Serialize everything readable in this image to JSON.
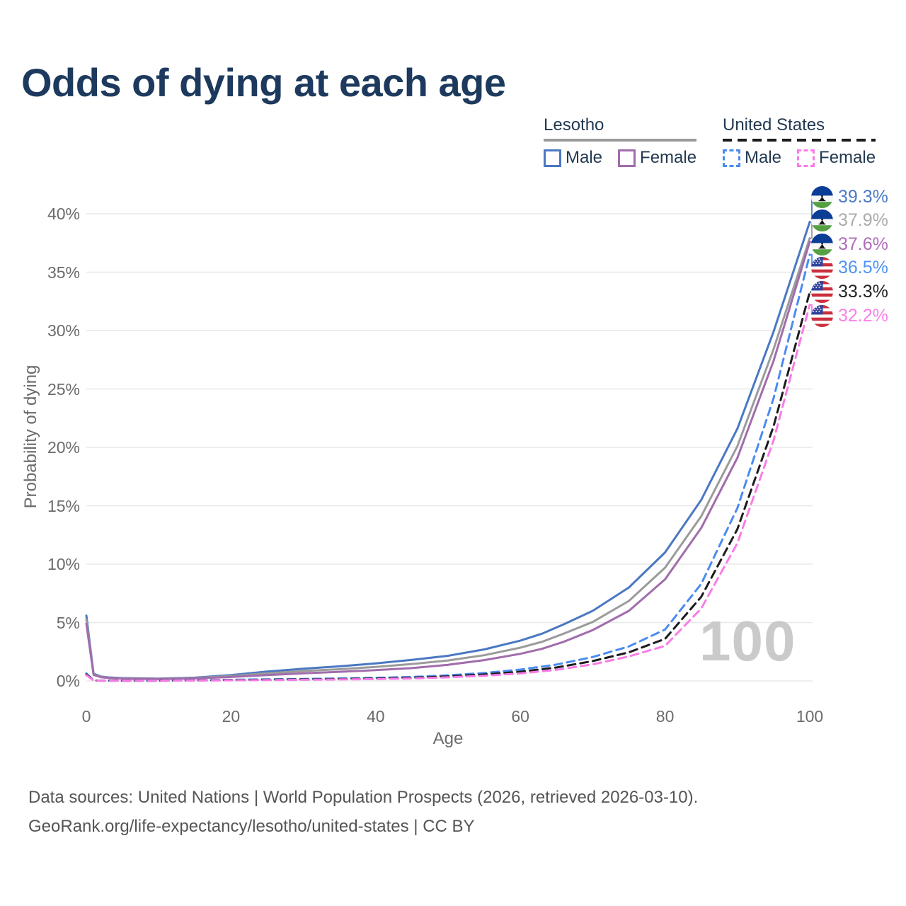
{
  "title": "Odds of dying at each age",
  "legend": {
    "groups": [
      {
        "label": "Lesotho",
        "items": [
          {
            "label": "Male"
          },
          {
            "label": "Female"
          }
        ]
      },
      {
        "label": "United States",
        "items": [
          {
            "label": "Male"
          },
          {
            "label": "Female"
          }
        ]
      }
    ]
  },
  "chart_data": {
    "type": "line",
    "title": "Odds of dying at each age",
    "xlabel": "Age",
    "ylabel": "Probability of dying",
    "xticks": [
      0,
      20,
      40,
      60,
      80,
      100
    ],
    "yticks": [
      0,
      5,
      10,
      15,
      20,
      25,
      30,
      35,
      40
    ],
    "xlim": [
      0,
      100
    ],
    "ylim": [
      0,
      41
    ],
    "grid": "horizontal",
    "watermark": "100",
    "legend_position": "top-right",
    "series": [
      {
        "name": "Lesotho Male",
        "country": "Lesotho",
        "sex": "Male",
        "style": "solid",
        "color": "#4a78c2",
        "label_color": "#4a7ac8",
        "end_label": "39.3%",
        "flag": "lesotho",
        "points": [
          [
            0,
            5.6
          ],
          [
            1,
            0.62
          ],
          [
            2,
            0.38
          ],
          [
            3,
            0.3
          ],
          [
            5,
            0.24
          ],
          [
            10,
            0.2
          ],
          [
            15,
            0.28
          ],
          [
            20,
            0.5
          ],
          [
            25,
            0.8
          ],
          [
            30,
            1.05
          ],
          [
            35,
            1.25
          ],
          [
            40,
            1.5
          ],
          [
            45,
            1.8
          ],
          [
            50,
            2.15
          ],
          [
            55,
            2.7
          ],
          [
            60,
            3.45
          ],
          [
            63,
            4.05
          ],
          [
            66,
            4.85
          ],
          [
            70,
            6.0
          ],
          [
            75,
            8.0
          ],
          [
            80,
            11.0
          ],
          [
            85,
            15.5
          ],
          [
            90,
            21.6
          ],
          [
            95,
            29.9
          ],
          [
            100,
            39.3
          ]
        ]
      },
      {
        "name": "Lesotho Both sexes",
        "country": "Lesotho",
        "sex": "Both",
        "style": "solid",
        "color": "#9b9b9b",
        "label_color": "#ababab",
        "end_label": "37.9%",
        "flag": "lesotho",
        "points": [
          [
            0,
            5.25
          ],
          [
            1,
            0.57
          ],
          [
            2,
            0.35
          ],
          [
            3,
            0.27
          ],
          [
            5,
            0.21
          ],
          [
            10,
            0.18
          ],
          [
            15,
            0.24
          ],
          [
            20,
            0.42
          ],
          [
            25,
            0.65
          ],
          [
            30,
            0.85
          ],
          [
            35,
            1.0
          ],
          [
            40,
            1.2
          ],
          [
            45,
            1.45
          ],
          [
            50,
            1.75
          ],
          [
            55,
            2.2
          ],
          [
            60,
            2.85
          ],
          [
            63,
            3.35
          ],
          [
            66,
            4.05
          ],
          [
            70,
            5.05
          ],
          [
            75,
            6.85
          ],
          [
            80,
            9.7
          ],
          [
            85,
            14.1
          ],
          [
            90,
            20.1
          ],
          [
            95,
            28.4
          ],
          [
            100,
            37.9
          ]
        ]
      },
      {
        "name": "Lesotho Female",
        "country": "Lesotho",
        "sex": "Female",
        "style": "solid",
        "color": "#a16cac",
        "label_color": "#b06cb8",
        "end_label": "37.6%",
        "flag": "lesotho",
        "points": [
          [
            0,
            4.9
          ],
          [
            1,
            0.52
          ],
          [
            2,
            0.32
          ],
          [
            3,
            0.25
          ],
          [
            5,
            0.19
          ],
          [
            10,
            0.16
          ],
          [
            15,
            0.21
          ],
          [
            20,
            0.34
          ],
          [
            25,
            0.5
          ],
          [
            30,
            0.65
          ],
          [
            35,
            0.78
          ],
          [
            40,
            0.92
          ],
          [
            45,
            1.1
          ],
          [
            50,
            1.38
          ],
          [
            55,
            1.78
          ],
          [
            60,
            2.32
          ],
          [
            63,
            2.75
          ],
          [
            66,
            3.35
          ],
          [
            70,
            4.35
          ],
          [
            75,
            6.0
          ],
          [
            80,
            8.7
          ],
          [
            85,
            13.1
          ],
          [
            90,
            19.1
          ],
          [
            95,
            27.4
          ],
          [
            100,
            37.6
          ]
        ]
      },
      {
        "name": "United States Male",
        "country": "United States",
        "sex": "Male",
        "style": "dashed",
        "color": "#4c8bf0",
        "label_color": "#4e93f5",
        "end_label": "36.5%",
        "flag": "us",
        "points": [
          [
            0,
            0.64
          ],
          [
            1,
            0.05
          ],
          [
            2,
            0.03
          ],
          [
            5,
            0.02
          ],
          [
            10,
            0.02
          ],
          [
            15,
            0.06
          ],
          [
            20,
            0.1
          ],
          [
            25,
            0.14
          ],
          [
            30,
            0.17
          ],
          [
            35,
            0.21
          ],
          [
            40,
            0.26
          ],
          [
            45,
            0.34
          ],
          [
            50,
            0.48
          ],
          [
            55,
            0.68
          ],
          [
            60,
            0.97
          ],
          [
            65,
            1.4
          ],
          [
            70,
            2.05
          ],
          [
            75,
            2.95
          ],
          [
            80,
            4.4
          ],
          [
            85,
            8.3
          ],
          [
            90,
            14.8
          ],
          [
            95,
            24.2
          ],
          [
            100,
            36.5
          ]
        ]
      },
      {
        "name": "United States Both sexes",
        "country": "United States",
        "sex": "Both",
        "style": "dashed",
        "color": "#1c1c1c",
        "label_color": "#222222",
        "end_label": "33.3%",
        "flag": "us",
        "points": [
          [
            0,
            0.56
          ],
          [
            1,
            0.045
          ],
          [
            2,
            0.027
          ],
          [
            5,
            0.017
          ],
          [
            10,
            0.017
          ],
          [
            15,
            0.045
          ],
          [
            20,
            0.075
          ],
          [
            25,
            0.1
          ],
          [
            30,
            0.13
          ],
          [
            35,
            0.16
          ],
          [
            40,
            0.2
          ],
          [
            45,
            0.27
          ],
          [
            50,
            0.38
          ],
          [
            55,
            0.55
          ],
          [
            60,
            0.79
          ],
          [
            65,
            1.15
          ],
          [
            70,
            1.7
          ],
          [
            75,
            2.45
          ],
          [
            80,
            3.6
          ],
          [
            85,
            7.2
          ],
          [
            90,
            13.0
          ],
          [
            95,
            21.8
          ],
          [
            100,
            33.3
          ]
        ]
      },
      {
        "name": "United States Female",
        "country": "United States",
        "sex": "Female",
        "style": "dashed",
        "color": "#f87ce7",
        "label_color": "#fb80ea",
        "end_label": "32.2%",
        "flag": "us",
        "points": [
          [
            0,
            0.49
          ],
          [
            1,
            0.04
          ],
          [
            2,
            0.023
          ],
          [
            5,
            0.014
          ],
          [
            10,
            0.014
          ],
          [
            15,
            0.035
          ],
          [
            20,
            0.055
          ],
          [
            25,
            0.075
          ],
          [
            30,
            0.1
          ],
          [
            35,
            0.125
          ],
          [
            40,
            0.16
          ],
          [
            45,
            0.215
          ],
          [
            50,
            0.31
          ],
          [
            55,
            0.44
          ],
          [
            60,
            0.64
          ],
          [
            65,
            0.95
          ],
          [
            70,
            1.42
          ],
          [
            75,
            2.1
          ],
          [
            80,
            3.0
          ],
          [
            85,
            6.2
          ],
          [
            90,
            11.8
          ],
          [
            95,
            20.6
          ],
          [
            100,
            32.2
          ]
        ]
      }
    ]
  },
  "footer": {
    "line1": "Data sources: United Nations | World Population Prospects (2026, retrieved 2026-03-10).",
    "line2": "GeoRank.org/life-expectancy/lesotho/united-states | CC BY"
  }
}
